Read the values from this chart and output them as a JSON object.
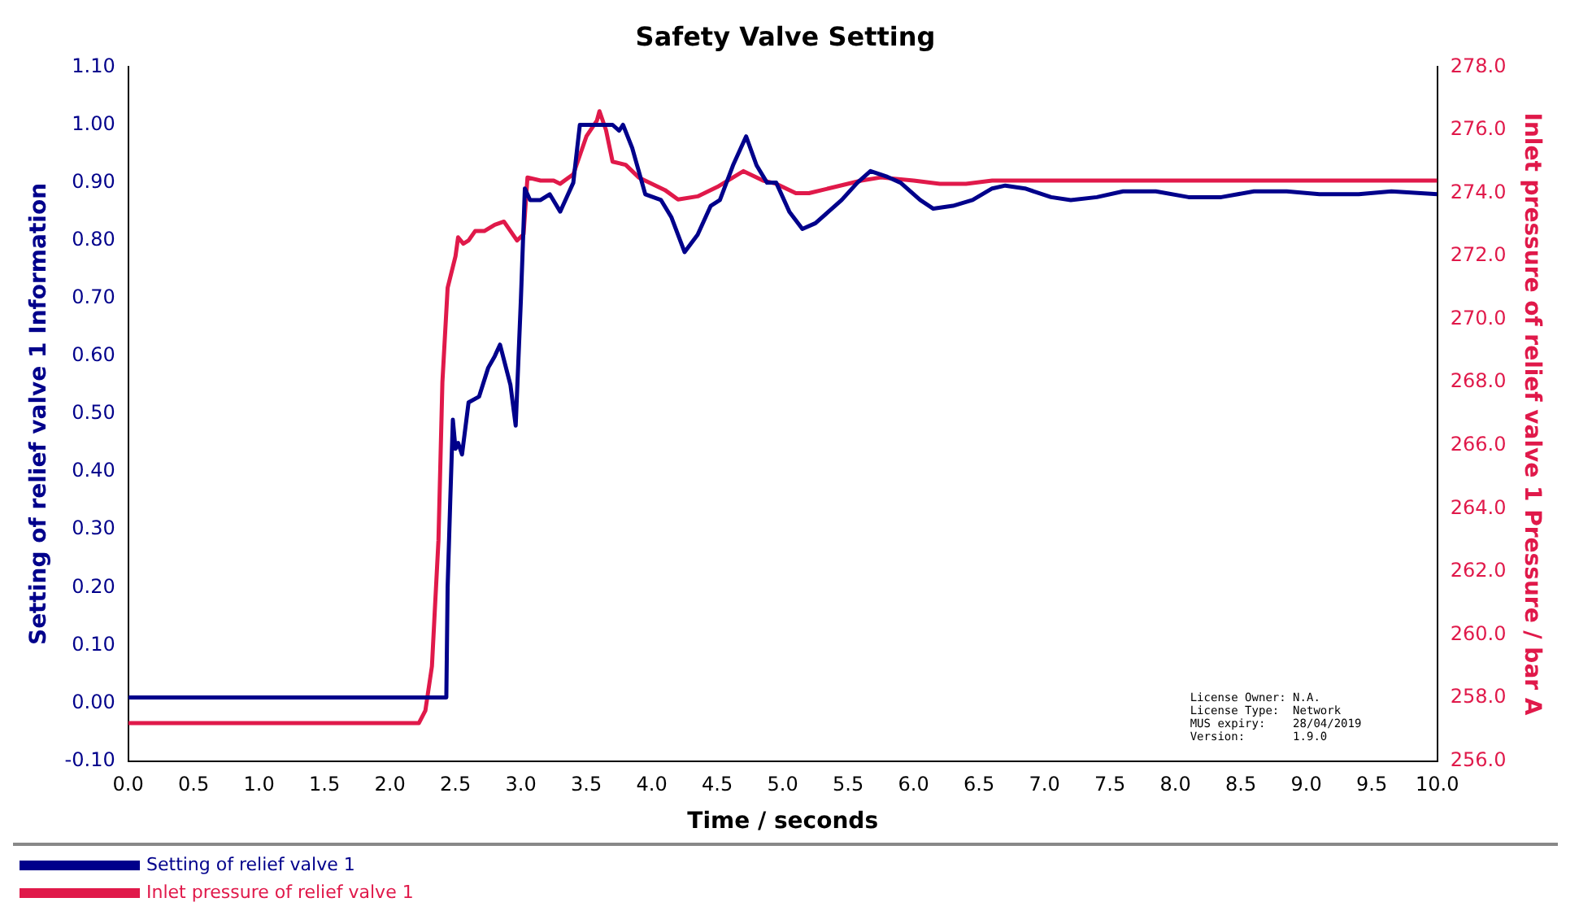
{
  "chart_data": {
    "type": "line",
    "title": "Safety Valve Setting",
    "xlabel": "Time / seconds",
    "ylabel": "Setting of relief valve 1 Information",
    "y2label": "Inlet pressure of relief valve 1 Pressure / bar A",
    "xlim": [
      0,
      10
    ],
    "xticks": [
      {
        "value": 0,
        "label": "0.0"
      },
      {
        "value": 0.5,
        "label": "0.5"
      },
      {
        "value": 1,
        "label": "1.0"
      },
      {
        "value": 1.5,
        "label": "1.5"
      },
      {
        "value": 2,
        "label": "2.0"
      },
      {
        "value": 2.5,
        "label": "2.5"
      },
      {
        "value": 3,
        "label": "3.0"
      },
      {
        "value": 3.5,
        "label": "3.5"
      },
      {
        "value": 4,
        "label": "4.0"
      },
      {
        "value": 4.5,
        "label": "4.5"
      },
      {
        "value": 5,
        "label": "5.0"
      },
      {
        "value": 5.5,
        "label": "5.5"
      },
      {
        "value": 6,
        "label": "6.0"
      },
      {
        "value": 6.5,
        "label": "6.5"
      },
      {
        "value": 7,
        "label": "7.0"
      },
      {
        "value": 7.5,
        "label": "7.5"
      },
      {
        "value": 8,
        "label": "8.0"
      },
      {
        "value": 8.5,
        "label": "8.5"
      },
      {
        "value": 9,
        "label": "9.0"
      },
      {
        "value": 9.5,
        "label": "9.5"
      },
      {
        "value": 10,
        "label": "10.0"
      }
    ],
    "ylim": [
      -0.1,
      1.1
    ],
    "yticks": [
      {
        "value": -0.1,
        "label": "-0.10"
      },
      {
        "value": 0,
        "label": "0.00"
      },
      {
        "value": 0.1,
        "label": "0.10"
      },
      {
        "value": 0.2,
        "label": "0.20"
      },
      {
        "value": 0.3,
        "label": "0.30"
      },
      {
        "value": 0.4,
        "label": "0.40"
      },
      {
        "value": 0.5,
        "label": "0.50"
      },
      {
        "value": 0.6,
        "label": "0.60"
      },
      {
        "value": 0.7,
        "label": "0.70"
      },
      {
        "value": 0.8,
        "label": "0.80"
      },
      {
        "value": 0.9,
        "label": "0.90"
      },
      {
        "value": 1,
        "label": "1.00"
      },
      {
        "value": 1.1,
        "label": "1.10"
      }
    ],
    "y2lim": [
      256,
      278
    ],
    "y2ticks": [
      {
        "value": 256,
        "label": "256.0"
      },
      {
        "value": 258,
        "label": "258.0"
      },
      {
        "value": 260,
        "label": "260.0"
      },
      {
        "value": 262,
        "label": "262.0"
      },
      {
        "value": 264,
        "label": "264.0"
      },
      {
        "value": 266,
        "label": "266.0"
      },
      {
        "value": 268,
        "label": "268.0"
      },
      {
        "value": 270,
        "label": "270.0"
      },
      {
        "value": 272,
        "label": "272.0"
      },
      {
        "value": 274,
        "label": "274.0"
      },
      {
        "value": 276,
        "label": "276.0"
      },
      {
        "value": 278,
        "label": "278.0"
      }
    ],
    "grid": false,
    "legend": "bottom",
    "marker": "none",
    "line_style": "solid",
    "annotations": [
      "License Owner: N.A.",
      "License Type:  Network",
      "MUS expiry:    28/04/2019",
      "Version:       1.9.0"
    ],
    "series": [
      {
        "name": "Setting of relief valve 1",
        "color": "#00008b",
        "x": [
          0,
          2.43,
          2.44,
          2.46,
          2.48,
          2.5,
          2.52,
          2.55,
          2.6,
          2.68,
          2.75,
          2.8,
          2.84,
          2.92,
          2.96,
          3.0,
          3.03,
          3.07,
          3.15,
          3.22,
          3.3,
          3.4,
          3.45,
          3.7,
          3.75,
          3.78,
          3.85,
          3.95,
          4.07,
          4.15,
          4.25,
          4.35,
          4.45,
          4.52,
          4.62,
          4.72,
          4.8,
          4.88,
          4.95,
          5.05,
          5.15,
          5.25,
          5.35,
          5.45,
          5.57,
          5.67,
          5.8,
          5.9,
          6.05,
          6.15,
          6.3,
          6.45,
          6.6,
          6.7,
          6.85,
          7.05,
          7.2,
          7.4,
          7.6,
          7.85,
          8.1,
          8.35,
          8.6,
          8.85,
          9.1,
          9.4,
          9.65,
          10
        ],
        "values": [
          0.01,
          0.01,
          0.2,
          0.35,
          0.49,
          0.44,
          0.45,
          0.43,
          0.52,
          0.53,
          0.58,
          0.6,
          0.62,
          0.55,
          0.48,
          0.7,
          0.89,
          0.87,
          0.87,
          0.88,
          0.85,
          0.9,
          1.0,
          1.0,
          0.99,
          1.0,
          0.96,
          0.88,
          0.87,
          0.84,
          0.78,
          0.81,
          0.86,
          0.87,
          0.93,
          0.98,
          0.93,
          0.9,
          0.9,
          0.85,
          0.82,
          0.83,
          0.85,
          0.87,
          0.9,
          0.92,
          0.91,
          0.9,
          0.87,
          0.855,
          0.86,
          0.87,
          0.89,
          0.895,
          0.89,
          0.875,
          0.87,
          0.875,
          0.885,
          0.885,
          0.875,
          0.875,
          0.885,
          0.885,
          0.88,
          0.88,
          0.885,
          0.88
        ]
      },
      {
        "name": "Inlet pressure of relief valve 1",
        "color": "#e0194a",
        "axis": "y2",
        "x": [
          0,
          2.22,
          2.27,
          2.32,
          2.37,
          2.4,
          2.44,
          2.5,
          2.52,
          2.56,
          2.6,
          2.65,
          2.72,
          2.8,
          2.87,
          2.97,
          3.02,
          3.05,
          3.15,
          3.25,
          3.3,
          3.4,
          3.5,
          3.58,
          3.6,
          3.65,
          3.7,
          3.8,
          3.9,
          4.0,
          4.1,
          4.2,
          4.35,
          4.5,
          4.7,
          4.85,
          4.95,
          5.1,
          5.2,
          5.4,
          5.6,
          5.75,
          6.0,
          6.2,
          6.4,
          6.6,
          7.0,
          7.5,
          8.0,
          9.0,
          10
        ],
        "values": [
          257.2,
          257.2,
          257.6,
          259,
          263,
          268,
          271,
          272,
          272.6,
          272.4,
          272.5,
          272.8,
          272.8,
          273,
          273.1,
          272.5,
          272.7,
          274.5,
          274.4,
          274.4,
          274.3,
          274.6,
          275.8,
          276.3,
          276.6,
          276,
          275,
          274.9,
          274.5,
          274.3,
          274.1,
          273.8,
          273.9,
          274.2,
          274.7,
          274.4,
          274.3,
          274,
          274,
          274.2,
          274.4,
          274.5,
          274.4,
          274.3,
          274.3,
          274.4,
          274.4,
          274.4,
          274.4,
          274.4,
          274.4
        ]
      }
    ]
  }
}
